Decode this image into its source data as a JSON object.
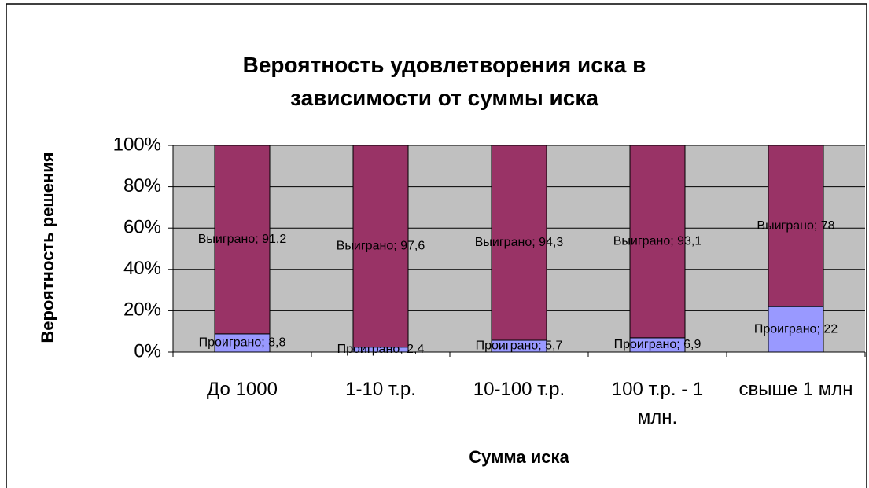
{
  "chart_data": {
    "type": "stacked_bar_100",
    "title": "Вероятность удовлетворения иска в зависимости от суммы иска",
    "x_label": "Сумма иска",
    "y_label": "Вероятность решения",
    "categories": [
      "До 1000",
      "1-10 т.р.",
      "10-100 т.р.",
      "100 т.р. - 1 млн.",
      "свыше 1 млн"
    ],
    "series": [
      {
        "name": "Проиграно",
        "color": "#9999ff",
        "values": [
          8.8,
          2.4,
          5.7,
          6.9,
          22
        ],
        "value_labels": [
          "Проиграно; 8,8",
          "Проиграно; 2,4",
          "Проиграно; 5,7",
          "Проиграно; 6,9",
          "Проиграно; 22"
        ]
      },
      {
        "name": "Выиграно",
        "color": "#993366",
        "values": [
          91.2,
          97.6,
          94.3,
          93.1,
          78
        ],
        "value_labels": [
          "Выиграно; 91,2",
          "Выиграно; 97,6",
          "Выиграно; 94,3",
          "Выиграно; 93,1",
          "Выиграно; 78"
        ]
      }
    ],
    "ylim": [
      0,
      100
    ],
    "yticks": [
      {
        "value": 0,
        "label": "0%"
      },
      {
        "value": 20,
        "label": "20%"
      },
      {
        "value": 40,
        "label": "40%"
      },
      {
        "value": 60,
        "label": "60%"
      },
      {
        "value": 80,
        "label": "80%"
      },
      {
        "value": 100,
        "label": "100%"
      }
    ],
    "grid": true,
    "plot_background": "#c0c0c0"
  }
}
